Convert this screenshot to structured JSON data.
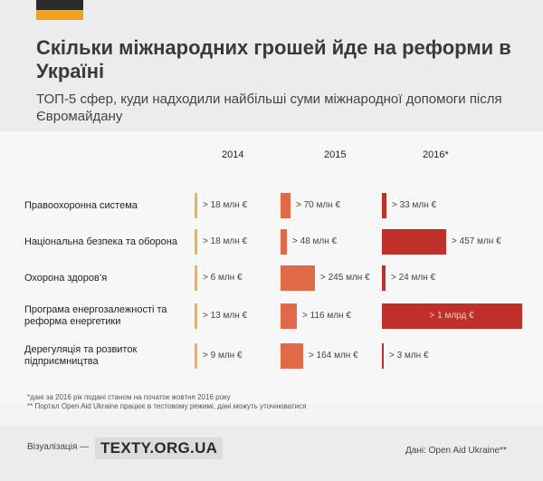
{
  "header": {
    "title": "Скільки міжнародних грошей йде на реформи в Україні",
    "subtitle": "ТОП-5 сфер, куди надходили найбільші суми міжнародної допомоги після Євромайдану"
  },
  "chart_data": {
    "type": "bar",
    "years": [
      "2014",
      "2015",
      "2016*"
    ],
    "categories": [
      "Правоохоронна система",
      "Національна безпека та оборона",
      "Охорона здоров’я",
      "Програма енергозалежності та реформа енергетики",
      "Дерегуляція та розвиток підприємництва"
    ],
    "category_lines": [
      [
        "Правоохоронна система"
      ],
      [
        "Національна безпека та оборона"
      ],
      [
        "Охорона здоров’я"
      ],
      [
        "Програма енергозалежності  та",
        "реформа енергетики"
      ],
      [
        "Дерегуляція та розвиток",
        "підприємництва"
      ]
    ],
    "series": [
      {
        "name": "2014",
        "values": [
          18,
          18,
          6,
          13,
          9
        ],
        "labels": [
          "> 18 млн €",
          "> 18 млн €",
          "> 6 млн €",
          "> 13 млн €",
          "> 9 млн €"
        ]
      },
      {
        "name": "2015",
        "values": [
          70,
          48,
          245,
          116,
          164
        ],
        "labels": [
          "> 70 млн €",
          "> 48 млн €",
          "> 245 млн €",
          "> 116 млн €",
          "> 164 млн €"
        ]
      },
      {
        "name": "2016*",
        "values": [
          33,
          457,
          24,
          1000,
          3
        ],
        "labels": [
          "> 33 млн €",
          "> 457 млн €",
          "> 24 млн €",
          "> 1 млрд €",
          "> 3 млн €"
        ]
      }
    ],
    "unit": "млн €",
    "colors": [
      "#f0b34a",
      "#e06a48",
      "#c0302a"
    ]
  },
  "notes": [
    "*дані за 2016 рік подані станом на початок жовтня 2016 року",
    "** Портал Open Aid Ukraine працює в тестовому режимі, дані можуть уточнюватися"
  ],
  "footer": {
    "viz_label": "Візуалізація —",
    "logo": "TEXTY.ORG.UA",
    "source": "Дані: Open Aid Ukraine**"
  }
}
